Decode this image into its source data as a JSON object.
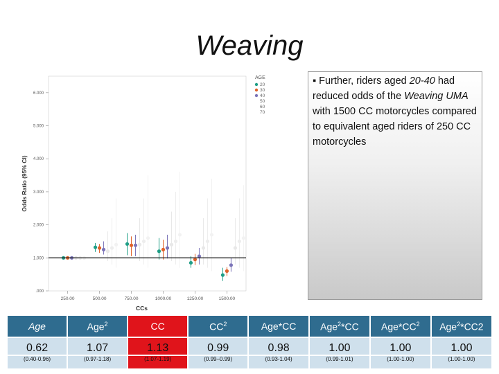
{
  "slide": {
    "title": "Weaving",
    "note_bullet": "▪",
    "note_parts": [
      {
        "t": " Further, riders aged ",
        "i": false
      },
      {
        "t": "20-40",
        "i": true
      },
      {
        "t": " had reduced odds of the ",
        "i": false
      },
      {
        "t": "Weaving UMA",
        "i": true
      },
      {
        "t": " with 1500 CC motorcycles compared to  equivalent aged riders of 250 CC motorcycles",
        "i": false
      }
    ]
  },
  "chart_data": {
    "type": "scatter",
    "xlabel": "CCs",
    "ylabel": "Odds Ratio (95% CI)",
    "x_ticks": [
      250,
      500,
      750,
      1000,
      1250,
      1500
    ],
    "x_tick_labels": [
      "250.00",
      "500.00",
      "750.00",
      "1000.00",
      "1250.00",
      "1500.00"
    ],
    "y_ticks": [
      0,
      1,
      2,
      3,
      4,
      5,
      6
    ],
    "y_tick_labels": [
      ".000",
      "1.000",
      "2.000",
      "3.000",
      "4.000",
      "5.000",
      "6.000"
    ],
    "xlim": [
      100,
      1650
    ],
    "ylim": [
      0,
      6.5
    ],
    "reference_line": 1,
    "legend_title": "AGE",
    "legend_position": "top-right",
    "series": [
      {
        "name": "20",
        "color": "#1e9e86",
        "x": [
          250,
          500,
          750,
          1000,
          1250,
          1500
        ],
        "y": [
          1.0,
          1.32,
          1.42,
          1.2,
          0.85,
          0.48
        ],
        "lo": [
          1.0,
          1.18,
          1.08,
          0.95,
          0.7,
          0.3
        ],
        "hi": [
          1.0,
          1.45,
          1.75,
          1.6,
          1.05,
          0.7
        ]
      },
      {
        "name": "30",
        "color": "#e0622a",
        "x": [
          250,
          500,
          750,
          1000,
          1250,
          1500
        ],
        "y": [
          1.0,
          1.3,
          1.38,
          1.25,
          0.95,
          0.6
        ],
        "lo": [
          1.0,
          1.15,
          1.05,
          0.95,
          0.78,
          0.45
        ],
        "hi": [
          1.0,
          1.42,
          1.65,
          1.55,
          1.12,
          0.72
        ]
      },
      {
        "name": "40",
        "color": "#7b74b8",
        "x": [
          250,
          500,
          750,
          1000,
          1250,
          1500
        ],
        "y": [
          1.0,
          1.25,
          1.38,
          1.3,
          1.05,
          0.78
        ],
        "lo": [
          1.0,
          1.1,
          1.05,
          0.98,
          0.8,
          0.58
        ],
        "hi": [
          1.0,
          1.5,
          1.7,
          1.7,
          1.3,
          1.0
        ]
      },
      {
        "name": "50",
        "color": "#e8e8e8",
        "x": [
          250,
          500,
          750,
          1000,
          1250,
          1500
        ],
        "y": [
          1.0,
          1.2,
          1.4,
          1.4,
          1.3,
          1.3
        ],
        "lo": [
          1.0,
          0.9,
          0.9,
          0.9,
          0.8,
          0.8
        ],
        "hi": [
          1.0,
          1.8,
          2.2,
          2.4,
          2.2,
          2.2
        ]
      },
      {
        "name": "60",
        "color": "#ededed",
        "x": [
          250,
          500,
          750,
          1000,
          1250,
          1500
        ],
        "y": [
          1.0,
          1.3,
          1.5,
          1.5,
          1.5,
          1.5
        ],
        "lo": [
          1.0,
          0.8,
          0.8,
          0.8,
          0.7,
          0.7
        ],
        "hi": [
          1.0,
          2.2,
          2.8,
          3.0,
          2.8,
          2.8
        ]
      },
      {
        "name": "70",
        "color": "#f2f2f2",
        "x": [
          250,
          500,
          750,
          1000,
          1250,
          1500
        ],
        "y": [
          1.0,
          1.4,
          1.6,
          1.7,
          1.7,
          1.6
        ],
        "lo": [
          1.0,
          0.7,
          0.7,
          0.7,
          0.6,
          0.6
        ],
        "hi": [
          1.0,
          2.8,
          3.5,
          3.6,
          3.4,
          3.2
        ]
      }
    ]
  },
  "table": {
    "headers": [
      {
        "base": "Age",
        "sup": "",
        "tail": ""
      },
      {
        "base": "Age",
        "sup": "2",
        "tail": ""
      },
      {
        "base": "CC",
        "sup": "",
        "tail": ""
      },
      {
        "base": "CC",
        "sup": "2",
        "tail": ""
      },
      {
        "base": "Age*CC",
        "sup": "",
        "tail": ""
      },
      {
        "base": "Age",
        "sup": "2",
        "tail": "*CC"
      },
      {
        "base": "Age*CC",
        "sup": "2",
        "tail": ""
      },
      {
        "base": "Age",
        "sup": "2",
        "tail": "*CC2"
      }
    ],
    "values": [
      "0.62",
      "1.07",
      "1.13",
      "0.99",
      "0.98",
      "1.00",
      "1.00",
      "1.00"
    ],
    "cis": [
      "(0.40-0.96)",
      "(0.97-1.18)",
      "(1.07-1.19)",
      "(0.99–0.99)",
      "(0.93-1.04)",
      "(0.99-1.01)",
      "(1.00-1.00)",
      "(1.00-1.00)"
    ],
    "highlight_col": 2,
    "header_color": "#2f6c8f",
    "cell_color": "#cfe0ec",
    "highlight_color": "#e0141b"
  }
}
